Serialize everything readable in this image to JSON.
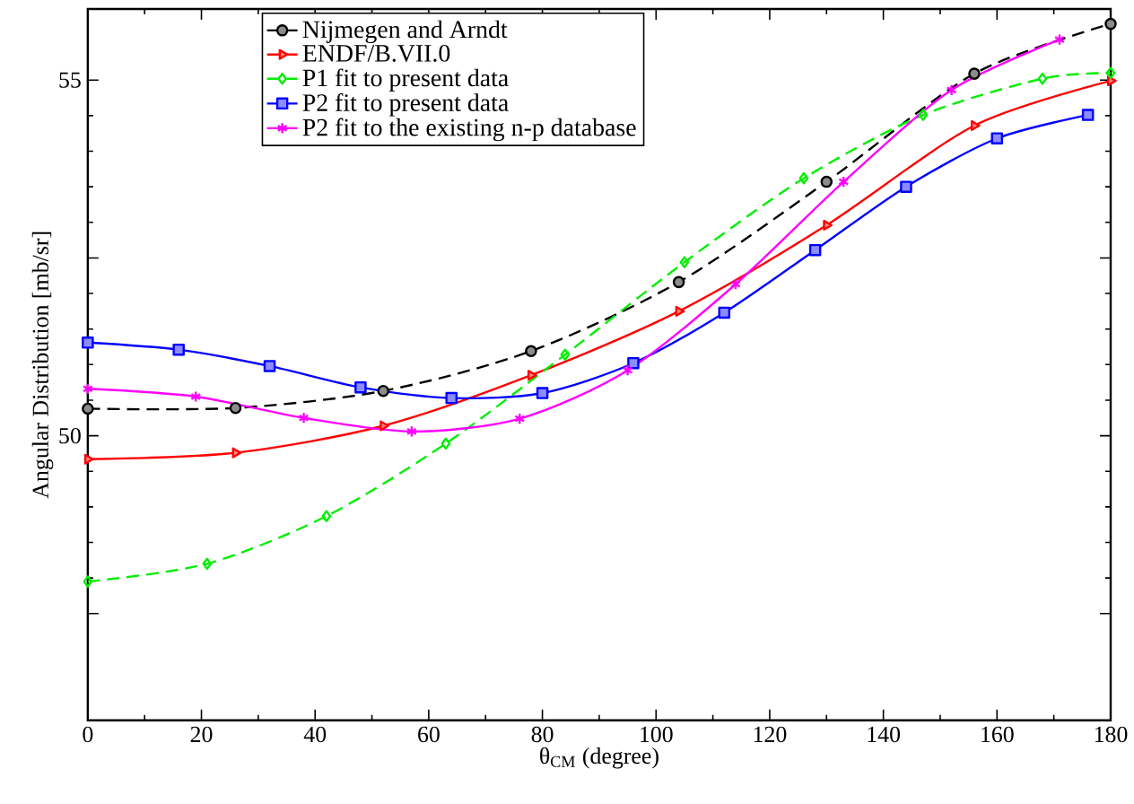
{
  "chart_data": {
    "type": "line",
    "xlabel": "θ$_{CM}$ (degree)",
    "ylabel": "Angular Distribution [mb/sr]",
    "xlim": [
      0,
      180
    ],
    "ylim": [
      46,
      56
    ],
    "xticks": [
      0,
      20,
      40,
      60,
      80,
      100,
      120,
      140,
      160,
      180
    ],
    "yticks": [
      {
        "value": 47.5,
        "label": null
      },
      50,
      {
        "value": 52.5,
        "label": null
      },
      55
    ],
    "legend": "top",
    "grid": false,
    "series": [
      {
        "name": "Nijmegen and Arndt",
        "color": "#000000",
        "marker": "circle",
        "line_style": "dashed",
        "x": [
          0,
          26,
          52,
          78,
          104,
          130,
          156,
          180
        ],
        "values": [
          50.38,
          50.39,
          50.63,
          51.19,
          52.16,
          53.57,
          55.09,
          55.79
        ]
      },
      {
        "name": "ENDF/B.VII.0",
        "color": "#ff0000",
        "marker": "triangle",
        "line_style": "solid",
        "x": [
          0,
          26,
          52,
          78,
          104,
          130,
          156,
          180
        ],
        "values": [
          49.67,
          49.76,
          50.14,
          50.85,
          51.75,
          52.96,
          54.36,
          54.99
        ]
      },
      {
        "name": "P1 fit to present data",
        "color": "#00ee00",
        "marker": "diamond",
        "line_style": "dashed",
        "x": [
          0,
          21,
          42,
          63,
          84,
          105,
          126,
          147,
          168,
          180
        ],
        "values": [
          47.95,
          48.2,
          48.87,
          49.89,
          51.14,
          52.44,
          53.62,
          54.51,
          55.02,
          55.1
        ]
      },
      {
        "name": "P2 fit to present data",
        "color": "#0000ff",
        "marker": "square",
        "line_style": "solid",
        "x": [
          0,
          16,
          32,
          48,
          64,
          80,
          96,
          112,
          128,
          144,
          160,
          176
        ],
        "values": [
          51.31,
          51.21,
          50.98,
          50.68,
          50.53,
          50.6,
          51.02,
          51.73,
          52.61,
          53.5,
          54.18,
          54.51
        ]
      },
      {
        "name": "P2 fit to the existing n-p database",
        "color": "#ff00ff",
        "marker": "cross",
        "line_style": "solid",
        "x": [
          0,
          19,
          38,
          57,
          76,
          95,
          114,
          133,
          152,
          171
        ],
        "values": [
          50.66,
          50.55,
          50.25,
          50.06,
          50.24,
          50.92,
          52.13,
          53.57,
          54.86,
          55.57
        ]
      }
    ]
  }
}
